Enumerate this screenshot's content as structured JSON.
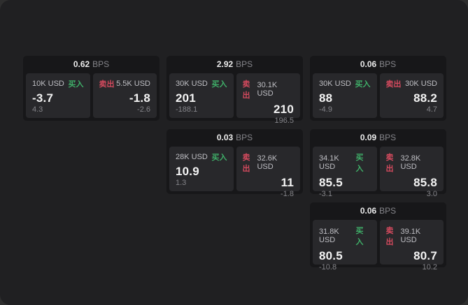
{
  "labels": {
    "bps_suffix": "BPS",
    "buy": "买入",
    "sell": "卖出"
  },
  "colors": {
    "backdrop": "#2e2e2e",
    "window_background": "#202022",
    "card_background": "#171719",
    "panel_background": "#28282b",
    "buy_green": "#3fae68",
    "sell_red": "#d44a5e",
    "primary_text": "#f3f3f3",
    "secondary_text": "#85858a"
  },
  "cards": [
    {
      "bps": "0.62",
      "buy": {
        "amount": "10K USD",
        "main": "-3.7",
        "sub": "4.3"
      },
      "sell": {
        "amount": "5.5K USD",
        "main": "-1.8",
        "sub": "-2.6"
      }
    },
    {
      "bps": "2.92",
      "buy": {
        "amount": "30K USD",
        "main": "201",
        "sub": "-188.1"
      },
      "sell": {
        "amount": "30.1K USD",
        "main": "210",
        "sub": "196.5"
      }
    },
    {
      "bps": "0.06",
      "buy": {
        "amount": "30K USD",
        "main": "88",
        "sub": "-4.9"
      },
      "sell": {
        "amount": "30K USD",
        "main": "88.2",
        "sub": "4.7"
      }
    },
    {
      "bps": "0.03",
      "buy": {
        "amount": "28K USD",
        "main": "10.9",
        "sub": "1.3"
      },
      "sell": {
        "amount": "32.6K USD",
        "main": "11",
        "sub": "-1.8"
      }
    },
    {
      "bps": "0.09",
      "buy": {
        "amount": "34.1K USD",
        "main": "85.5",
        "sub": "-3.1"
      },
      "sell": {
        "amount": "32.8K USD",
        "main": "85.8",
        "sub": "3.0"
      }
    },
    {
      "bps": "0.06",
      "buy": {
        "amount": "31.8K USD",
        "main": "80.5",
        "sub": "-10.8"
      },
      "sell": {
        "amount": "39.1K USD",
        "main": "80.7",
        "sub": "10.2"
      }
    }
  ]
}
